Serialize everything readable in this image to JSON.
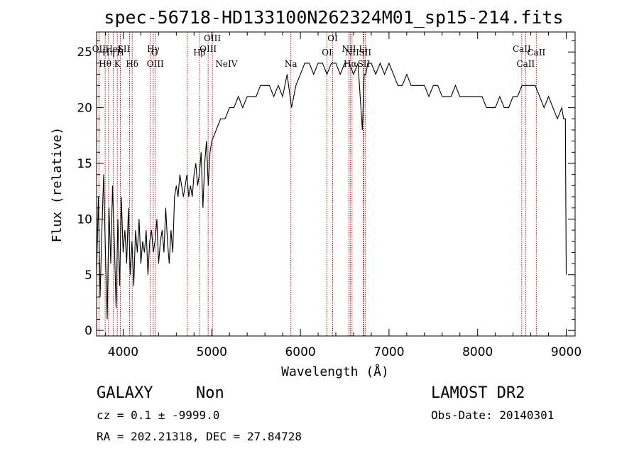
{
  "chart_data": {
    "type": "line",
    "title": "spec-56718-HD133100N262324M01_sp15-214.fits",
    "xlabel": "Wavelength (Å)",
    "ylabel": "Flux (relative)",
    "xlim": [
      3700,
      9100
    ],
    "ylim": [
      -0.5,
      26.8
    ],
    "xticks": [
      4000,
      5000,
      6000,
      7000,
      8000,
      9000
    ],
    "yticks": [
      0,
      5,
      10,
      15,
      20,
      25
    ],
    "series": [
      {
        "x": [
          3700,
          3720,
          3740,
          3760,
          3780,
          3800,
          3820,
          3840,
          3860,
          3880,
          3900,
          3920,
          3940,
          3960,
          3980,
          4000,
          4020,
          4040,
          4060,
          4080,
          4100,
          4120,
          4140,
          4160,
          4180,
          4200,
          4220,
          4240,
          4260,
          4280,
          4300,
          4320,
          4340,
          4360,
          4380,
          4400,
          4420,
          4440,
          4460,
          4480,
          4500,
          4520,
          4540,
          4560,
          4580,
          4600,
          4620,
          4640,
          4660,
          4680,
          4700,
          4720,
          4740,
          4760,
          4780,
          4800,
          4820,
          4840,
          4860,
          4880,
          4900,
          4920,
          4940,
          4960,
          4980,
          5000,
          5050,
          5100,
          5150,
          5200,
          5250,
          5300,
          5350,
          5400,
          5450,
          5500,
          5550,
          5600,
          5650,
          5700,
          5750,
          5800,
          5850,
          5900,
          5950,
          6000,
          6050,
          6100,
          6150,
          6200,
          6250,
          6300,
          6350,
          6400,
          6450,
          6500,
          6550,
          6600,
          6650,
          6700,
          6720,
          6740,
          6760,
          6800,
          6850,
          6900,
          6950,
          7000,
          7050,
          7100,
          7150,
          7200,
          7250,
          7300,
          7350,
          7400,
          7450,
          7500,
          7550,
          7600,
          7650,
          7700,
          7750,
          7800,
          7850,
          7900,
          7950,
          8000,
          8050,
          8100,
          8150,
          8200,
          8250,
          8300,
          8350,
          8400,
          8450,
          8500,
          8550,
          8600,
          8650,
          8700,
          8750,
          8800,
          8850,
          8900,
          8950,
          8970,
          8990,
          9000
        ],
        "values": [
          5,
          12,
          3,
          9,
          14,
          7,
          1,
          11,
          6,
          13,
          8,
          2,
          10,
          4,
          12,
          7,
          9,
          6,
          11,
          5,
          8,
          4,
          9,
          7,
          10,
          6,
          8,
          7,
          9,
          5,
          8,
          9,
          7,
          8,
          10,
          6,
          8,
          9,
          7,
          11,
          8,
          6,
          9,
          7,
          12,
          13,
          12,
          14,
          13,
          12,
          13,
          14,
          12,
          13,
          12,
          14,
          15,
          13,
          14,
          16,
          11,
          15,
          17,
          13,
          16,
          17,
          18,
          19,
          19,
          20,
          20,
          21,
          20,
          21,
          21,
          21,
          22,
          22,
          22,
          21,
          22,
          21,
          23,
          20,
          22,
          23,
          24,
          24,
          23,
          24,
          24,
          23,
          24,
          24,
          23,
          24,
          24,
          23,
          24,
          18,
          23,
          23,
          24,
          24,
          23,
          24,
          23,
          24,
          23,
          22,
          22,
          23,
          22,
          22,
          22,
          22,
          21,
          22,
          22,
          21,
          21,
          21,
          22,
          21,
          21,
          21,
          21,
          21,
          21,
          20,
          20,
          20,
          21,
          20,
          20,
          21,
          21,
          22,
          22,
          22,
          22,
          21,
          20,
          21,
          20,
          19,
          20,
          19,
          19,
          5
        ]
      }
    ],
    "lines": [
      {
        "name": "OII",
        "wave": 3727,
        "row": 1,
        "offset": 0
      },
      {
        "name": "Hθ",
        "wave": 3797,
        "row": 3,
        "offset": 0
      },
      {
        "name": "Hη",
        "wave": 3835,
        "row": 2,
        "offset": 0
      },
      {
        "name": "HeI",
        "wave": 3889,
        "row": 1,
        "offset": 0
      },
      {
        "name": "K",
        "wave": 3934,
        "row": 3,
        "offset": 0
      },
      {
        "name": "H",
        "wave": 3968,
        "row": 2,
        "offset": 0
      },
      {
        "name": "SII",
        "wave": 4072,
        "row": 1,
        "offset": -8
      },
      {
        "name": "Hδ",
        "wave": 4102,
        "row": 3,
        "offset": 0
      },
      {
        "name": "Hγ",
        "wave": 4340,
        "row": 1,
        "offset": 0
      },
      {
        "name": "G",
        "wave": 4305,
        "row": 2,
        "offset": 6
      },
      {
        "name": "OIII",
        "wave": 4363,
        "row": 3,
        "offset": 0
      },
      {
        "name": "Hβ",
        "wave": 4861,
        "row": 2,
        "offset": 0
      },
      {
        "name": "NeIV",
        "wave": 4725,
        "row": 3,
        "offset": 55
      },
      {
        "name": "OIII",
        "wave": 4959,
        "row": 1,
        "offset": 0
      },
      {
        "name": "OIII",
        "wave": 5007,
        "row": 0,
        "offset": 0
      },
      {
        "name": "Na",
        "wave": 5893,
        "row": 3,
        "offset": 0
      },
      {
        "name": "OI",
        "wave": 6300,
        "row": 2,
        "offset": 0
      },
      {
        "name": "OI",
        "wave": 6364,
        "row": 0,
        "offset": 0
      },
      {
        "name": "NII",
        "wave": 6548,
        "row": 1,
        "offset": 0
      },
      {
        "name": "Hα",
        "wave": 6563,
        "row": 3,
        "offset": 0
      },
      {
        "name": "NII",
        "wave": 6583,
        "row": 2,
        "offset": 0
      },
      {
        "name": "Li",
        "wave": 6708,
        "row": 1,
        "offset": 0
      },
      {
        "name": "SII",
        "wave": 6716,
        "row": 3,
        "offset": 0
      },
      {
        "name": "SII",
        "wave": 6731,
        "row": 2,
        "offset": 0
      },
      {
        "name": "CaII",
        "wave": 8498,
        "row": 1,
        "offset": 0
      },
      {
        "name": "CaII",
        "wave": 8542,
        "row": 3,
        "offset": 0
      },
      {
        "name": "CaII",
        "wave": 8662,
        "row": 2,
        "offset": 0
      }
    ]
  },
  "info": {
    "object_class": "GALAXY",
    "subclass": "Non",
    "cz": "cz = 0.1 ± -9999.0",
    "coords": "RA = 202.21318, DEC =  27.84728",
    "survey": "LAMOST DR2",
    "obs_date": "Obs-Date: 20140301"
  }
}
